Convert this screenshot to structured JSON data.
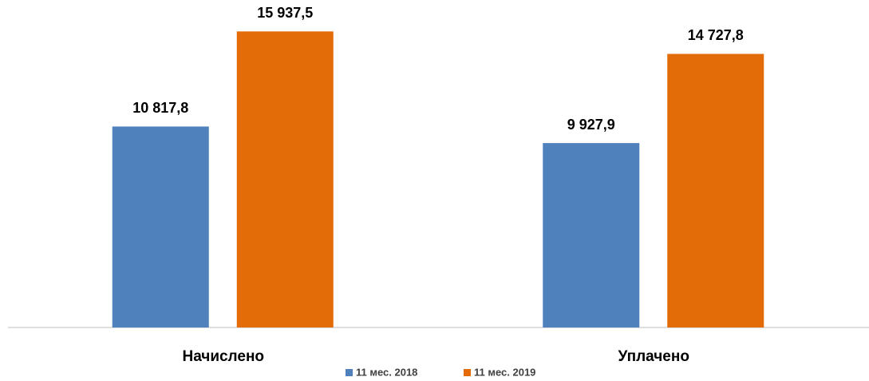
{
  "chart_data": {
    "type": "bar",
    "categories": [
      "Начислено",
      "Уплачено"
    ],
    "series": [
      {
        "name": "11 мес. 2018",
        "color": "#4f81bd",
        "values": [
          10817.8,
          9927.9
        ],
        "value_labels": [
          "10 817,8",
          "9 927,9"
        ]
      },
      {
        "name": "11 мес. 2019",
        "color": "#e36c09",
        "values": [
          15937.5,
          14727.8
        ],
        "value_labels": [
          "15 937,5",
          "14 727,8"
        ]
      }
    ],
    "ylim": [
      0,
      17500
    ],
    "legend": "bottom"
  }
}
